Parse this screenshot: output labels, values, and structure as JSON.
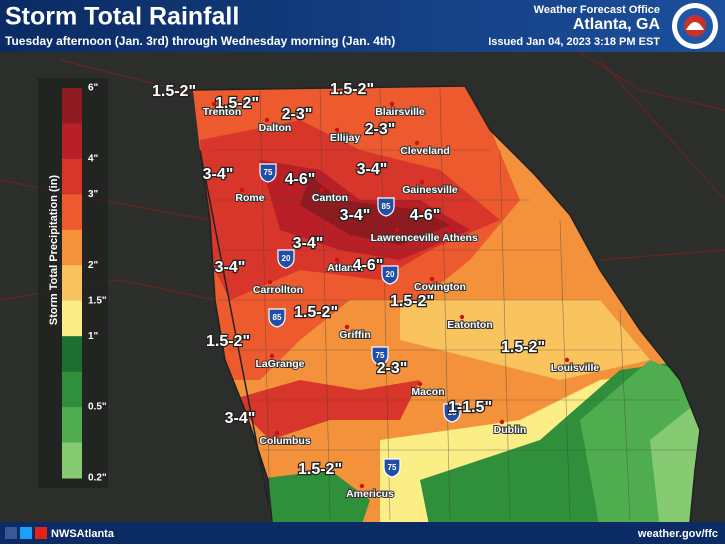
{
  "header": {
    "title": "Storm Total Rainfall",
    "subtitle": "Tuesday afternoon (Jan. 3rd) through Wednesday morning (Jan. 4th)",
    "office": "Weather Forecast Office",
    "location": "Atlanta, GA",
    "issued": "Issued Jan 04, 2023 3:18 PM EST"
  },
  "legend": {
    "title": "Storm Total Precipitation (in)",
    "labels": [
      "6\"",
      "4\"",
      "3\"",
      "2\"",
      "1.5\"",
      "1\"",
      "0.5\"",
      "0.2\""
    ],
    "colors": [
      "#8e1b1f",
      "#b81f26",
      "#d8352b",
      "#ec5a2e",
      "#f4923c",
      "#f9c35e",
      "#fbee87",
      "#1c6f2e",
      "#2f8f3a",
      "#4fac4f",
      "#86cb72"
    ]
  },
  "rainfall_labels": [
    "1.5-2\"",
    "1.5-2\"",
    "1.5-2\"",
    "2-3\"",
    "2-3\"",
    "3-4\"",
    "4-6\"",
    "3-4\"",
    "3-4\"",
    "4-6\"",
    "3-4\"",
    "3-4\"",
    "4-6\"",
    "1.5-2\"",
    "1.5-2\"",
    "1.5-2\"",
    "1.5-2\"",
    "2-3\"",
    "1-1.5\"",
    "3-4\"",
    "1.5-2\""
  ],
  "cities": [
    "Trenton",
    "Dalton",
    "Ellijay",
    "Blairsville",
    "Cleveland",
    "Rome",
    "Canton",
    "Gainesville",
    "Lawrenceville",
    "Athens",
    "Atlanta",
    "Carrollton",
    "Covington",
    "Griffin",
    "Eatonton",
    "LaGrange",
    "Louisville",
    "Macon",
    "Dublin",
    "Columbus",
    "Americus"
  ],
  "highways": [
    "75",
    "85",
    "20",
    "20",
    "85",
    "75",
    "16",
    "75"
  ],
  "footer": {
    "social": "NWSAtlanta",
    "url": "weather.gov/ffc"
  }
}
